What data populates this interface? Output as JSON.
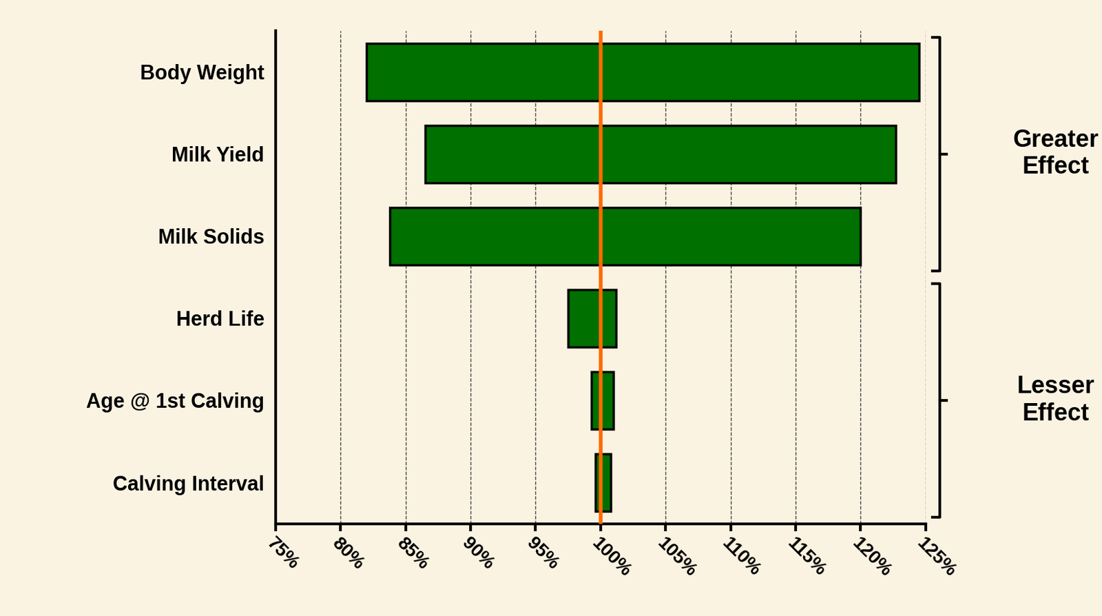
{
  "chart_data": {
    "type": "floating_bar",
    "orientation": "horizontal",
    "categories": [
      "Body Weight",
      "Milk Yield",
      "Milk Solids",
      "Herd Life",
      "Age @ 1st Calving",
      "Calving Interval"
    ],
    "values": [
      [
        82,
        124.5
      ],
      [
        86.5,
        122.7
      ],
      [
        83.8,
        120
      ],
      [
        97.5,
        101.2
      ],
      [
        99.3,
        101
      ],
      [
        99.6,
        100.8
      ]
    ],
    "color": "#007000",
    "reference_line": {
      "value": 100,
      "color": "#ff6a00"
    },
    "groups": [
      {
        "label": "Greater Effect",
        "categories": [
          "Body Weight",
          "Milk Yield",
          "Milk Solids"
        ]
      },
      {
        "label": "Lesser Effect",
        "categories": [
          "Herd Life",
          "Age @ 1st Calving",
          "Calving Interval"
        ]
      }
    ],
    "xlim": [
      75,
      125
    ],
    "xticks": [
      {
        "value": 75,
        "label": "75%"
      },
      {
        "value": 80,
        "label": "80%"
      },
      {
        "value": 85,
        "label": "85%"
      },
      {
        "value": 90,
        "label": "90%"
      },
      {
        "value": 95,
        "label": "95%"
      },
      {
        "value": 100,
        "label": "100%"
      },
      {
        "value": 105,
        "label": "105%"
      },
      {
        "value": 110,
        "label": "110%"
      },
      {
        "value": 115,
        "label": "115%"
      },
      {
        "value": 120,
        "label": "120%"
      },
      {
        "value": 125,
        "label": "125%"
      }
    ],
    "grid": true
  }
}
